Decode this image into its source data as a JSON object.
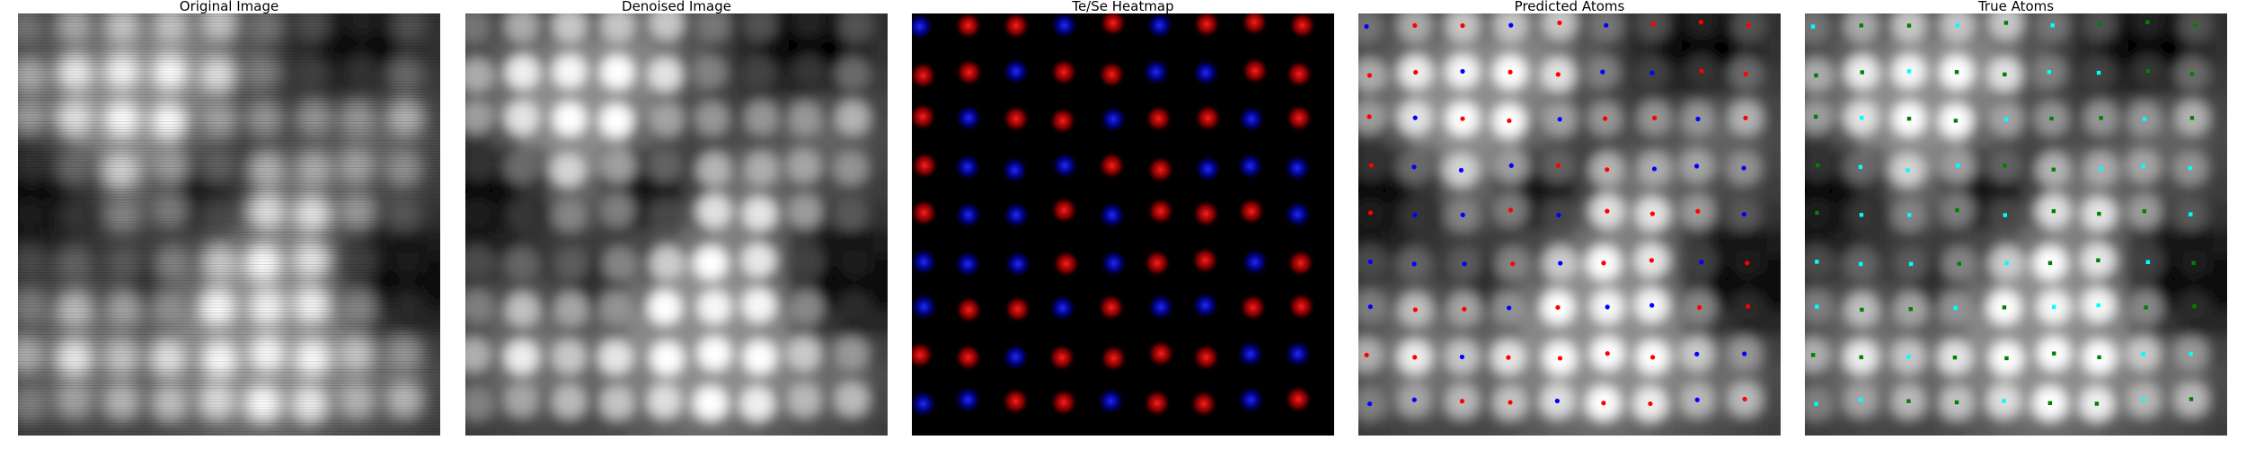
{
  "figure": {
    "panels": [
      {
        "title": "Original Image"
      },
      {
        "title": "Denoised Image"
      },
      {
        "title": "Te/Se Heatmap"
      },
      {
        "title": "Predicted Atoms"
      },
      {
        "title": "True Atoms"
      }
    ]
  },
  "colors": {
    "te": "#ff1f1f",
    "se": "#1f2bff",
    "predicted_te_marker": "#ff0000",
    "predicted_se_marker": "#0000ff",
    "true_te_marker": "#00ffff",
    "true_se_marker": "#008000",
    "heatmap_background": "#000000"
  }
}
